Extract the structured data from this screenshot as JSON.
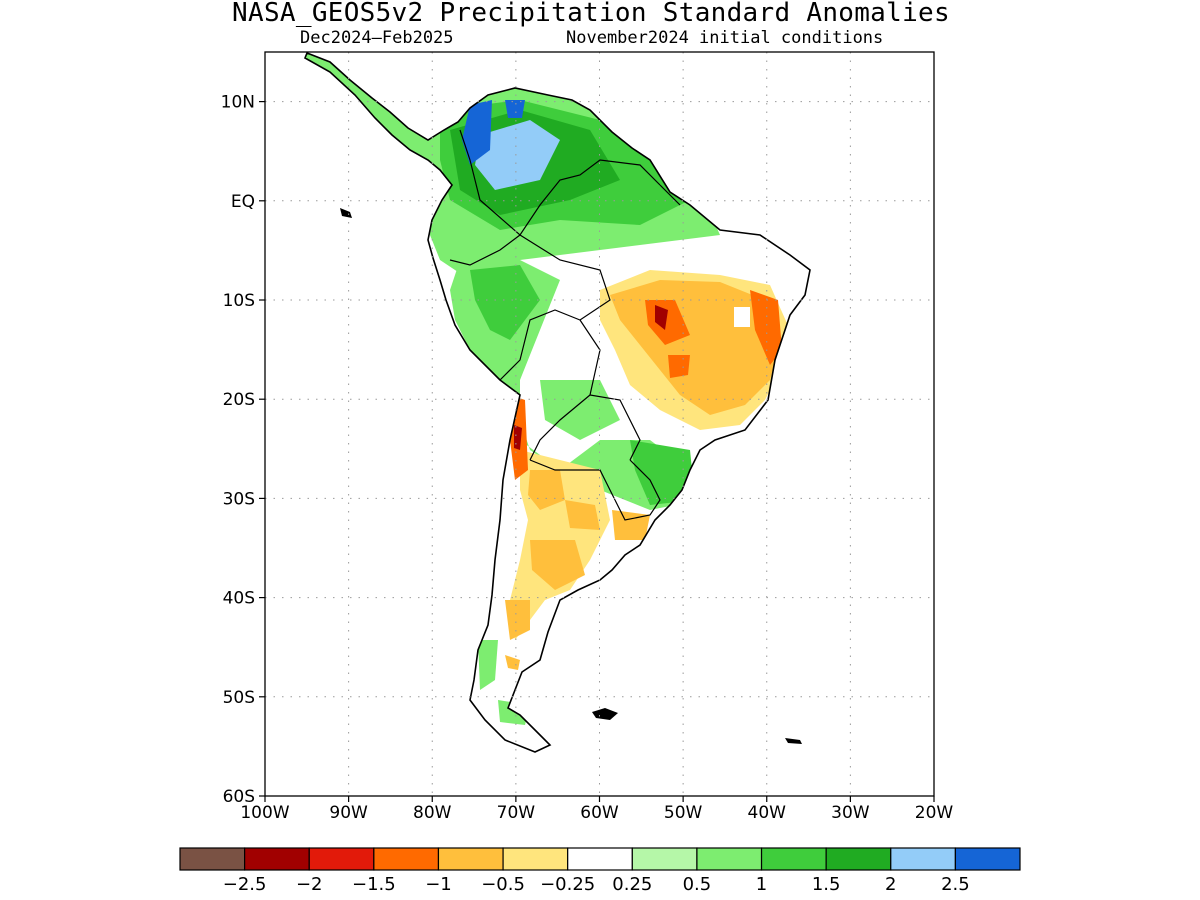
{
  "title": "NASA_GEOS5v2 Precipitation Standard Anomalies",
  "subtitle_left": "Dec2024–Feb2025",
  "subtitle_right": "November2024 initial conditions",
  "map": {
    "lon_range": [
      -100,
      -20
    ],
    "lat_range": [
      -60,
      15
    ],
    "x_ticks": [
      {
        "lon": -100,
        "label": "100W"
      },
      {
        "lon": -90,
        "label": "90W"
      },
      {
        "lon": -80,
        "label": "80W"
      },
      {
        "lon": -70,
        "label": "70W"
      },
      {
        "lon": -60,
        "label": "60W"
      },
      {
        "lon": -50,
        "label": "50W"
      },
      {
        "lon": -40,
        "label": "40W"
      },
      {
        "lon": -30,
        "label": "30W"
      },
      {
        "lon": -20,
        "label": "20W"
      }
    ],
    "y_ticks": [
      {
        "lat": 10,
        "label": "10N"
      },
      {
        "lat": 0,
        "label": "EQ"
      },
      {
        "lat": -10,
        "label": "10S"
      },
      {
        "lat": -20,
        "label": "20S"
      },
      {
        "lat": -30,
        "label": "30S"
      },
      {
        "lat": -40,
        "label": "40S"
      },
      {
        "lat": -50,
        "label": "50S"
      },
      {
        "lat": -60,
        "label": "60S"
      }
    ],
    "grid": "dotted"
  },
  "colorbar": {
    "colors": [
      "#7a5244",
      "#a10000",
      "#e21a0a",
      "#ff6a00",
      "#ffbf3c",
      "#ffe57d",
      "#ffffff",
      "#b5f7a8",
      "#7ded70",
      "#3fcd3c",
      "#20ab22",
      "#93ccf8",
      "#1565d6"
    ],
    "labels": [
      "−2.5",
      "−2",
      "−1.5",
      "−1",
      "−0.5",
      "−0.25",
      "0.25",
      "0.5",
      "1",
      "1.5",
      "2",
      "2.5"
    ]
  }
}
